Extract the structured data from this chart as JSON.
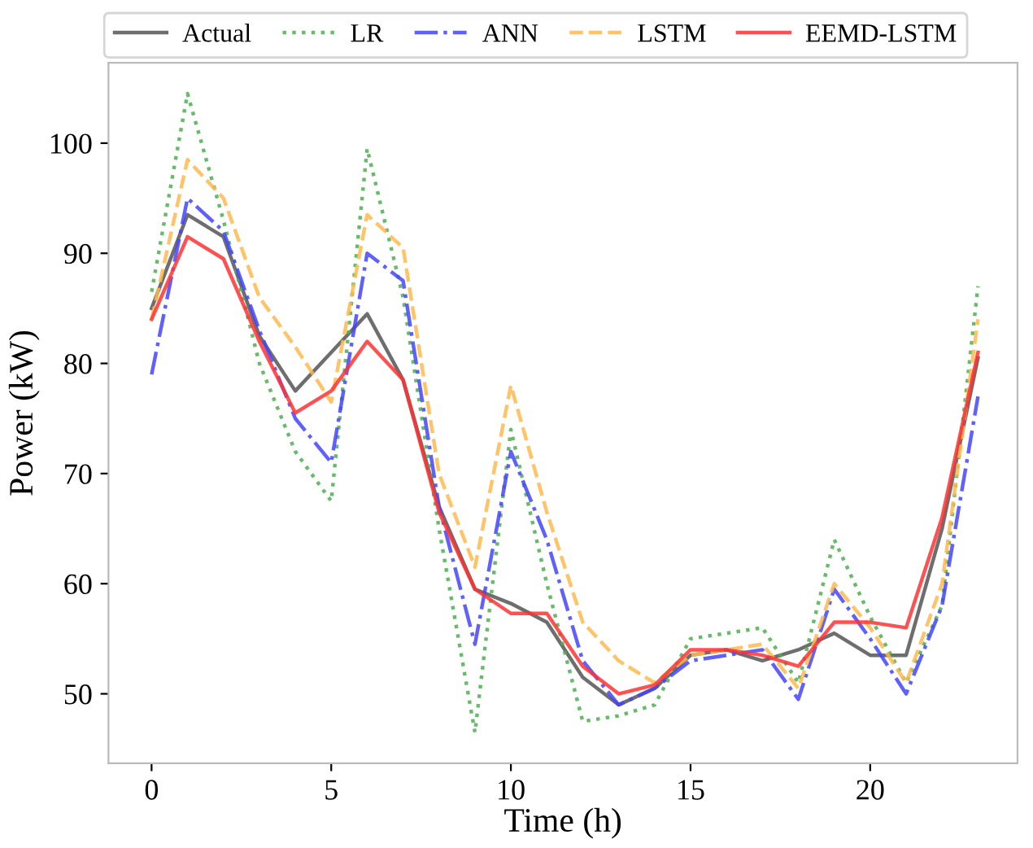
{
  "chart_data": {
    "type": "line",
    "xlabel": "Time (h)",
    "ylabel": "Power (kW)",
    "x": [
      0,
      1,
      2,
      3,
      4,
      5,
      6,
      7,
      8,
      9,
      10,
      11,
      12,
      13,
      14,
      15,
      16,
      17,
      18,
      19,
      20,
      21,
      22,
      23
    ],
    "xlim": [
      -1.2,
      24.1
    ],
    "xticks": [
      0,
      5,
      10,
      15,
      20
    ],
    "ylim": [
      43.7,
      107.3
    ],
    "yticks": [
      50,
      60,
      70,
      80,
      90,
      100
    ],
    "grid": false,
    "legend": "top",
    "marker": "none",
    "series": [
      {
        "name": "Actual",
        "color": "#555555",
        "line_style": "solid",
        "values": [
          85,
          93.5,
          91.5,
          82.5,
          77.5,
          81,
          84.5,
          78.5,
          67,
          59.5,
          58.2,
          56.5,
          51.5,
          49,
          50.5,
          53.5,
          54,
          53,
          54,
          55.5,
          53.5,
          53.5,
          65,
          80.5
        ]
      },
      {
        "name": "LR",
        "color": "#4caf50",
        "line_style": "dotted",
        "values": [
          86.5,
          104.5,
          93,
          80,
          72,
          67.5,
          99.5,
          86,
          65,
          46.5,
          74,
          60,
          47.5,
          48,
          49,
          55,
          55.5,
          56,
          51,
          64,
          57,
          51,
          58,
          87
        ]
      },
      {
        "name": "ANN",
        "color": "#4444ff",
        "line_style": "dashdot",
        "values": [
          79,
          95,
          92,
          83,
          75,
          71,
          90,
          87.5,
          67,
          54.5,
          72,
          64,
          53,
          49,
          50.5,
          53,
          53.5,
          54,
          49.5,
          59.5,
          55,
          50,
          58,
          77
        ]
      },
      {
        "name": "LSTM",
        "color": "#ffb84d",
        "line_style": "dashed",
        "values": [
          84,
          98.5,
          95,
          86,
          81.5,
          76.5,
          93.5,
          90.5,
          70,
          61.5,
          78,
          66.5,
          56.5,
          53,
          51,
          53.5,
          54,
          54.5,
          50.5,
          60,
          56,
          51,
          60,
          84
        ]
      },
      {
        "name": "EEMD-LSTM",
        "color": "#ff3333",
        "line_style": "solid",
        "values": [
          84,
          91.5,
          89.5,
          82,
          75.5,
          77.5,
          82,
          78.5,
          66.5,
          59.5,
          57.3,
          57.3,
          52.5,
          50,
          50.8,
          54,
          54,
          53.5,
          52.5,
          56.5,
          56.5,
          56,
          66,
          81
        ]
      }
    ]
  }
}
